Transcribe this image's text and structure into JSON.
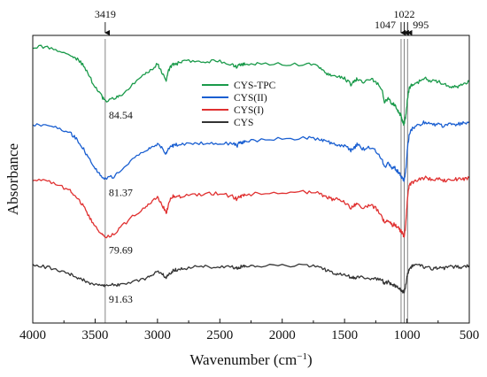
{
  "chart_data": {
    "type": "line",
    "xlabel": "Wavenumber (cm",
    "xlabel_sup": "−1",
    "xlabel_close": ")",
    "ylabel": "Absorbance",
    "xlim": [
      4000,
      500
    ],
    "x_reversed": true,
    "grid": false,
    "legend_position": "center",
    "x_ticks": [
      {
        "value": 4000,
        "label": "4000"
      },
      {
        "value": 3500,
        "label": "3500"
      },
      {
        "value": 3000,
        "label": "3000"
      },
      {
        "value": 2500,
        "label": "2500"
      },
      {
        "value": 2000,
        "label": "2000"
      },
      {
        "value": 1500,
        "label": "1500"
      },
      {
        "value": 1000,
        "label": "1000"
      },
      {
        "value": 500,
        "label": "500"
      }
    ],
    "reference_lines": [
      {
        "x": 3419,
        "label": "3419"
      },
      {
        "x": 1047,
        "label": "1047"
      },
      {
        "x": 1022,
        "label": "1022"
      },
      {
        "x": 995,
        "label": "995"
      }
    ],
    "series": [
      {
        "name": "CYS-TPC",
        "color": "#1a9a4a",
        "x": [
          4000,
          3900,
          3800,
          3700,
          3650,
          3600,
          3550,
          3500,
          3450,
          3419,
          3350,
          3300,
          3200,
          3100,
          3050,
          3000,
          2960,
          2930,
          2910,
          2880,
          2850,
          2800,
          2700,
          2600,
          2500,
          2400,
          2360,
          2340,
          2320,
          2300,
          2200,
          2000,
          1800,
          1700,
          1650,
          1600,
          1550,
          1500,
          1450,
          1420,
          1400,
          1350,
          1300,
          1250,
          1200,
          1180,
          1150,
          1120,
          1100,
          1080,
          1060,
          1047,
          1035,
          1022,
          1010,
          995,
          980,
          950,
          900,
          850,
          800,
          750,
          700,
          650,
          600,
          550,
          500
        ],
        "y": [
          0.96,
          0.96,
          0.95,
          0.93,
          0.92,
          0.9,
          0.86,
          0.82,
          0.79,
          0.77,
          0.78,
          0.79,
          0.83,
          0.87,
          0.88,
          0.9,
          0.87,
          0.84,
          0.88,
          0.9,
          0.9,
          0.91,
          0.91,
          0.91,
          0.91,
          0.9,
          0.89,
          0.9,
          0.9,
          0.9,
          0.9,
          0.9,
          0.9,
          0.89,
          0.87,
          0.86,
          0.86,
          0.85,
          0.83,
          0.84,
          0.85,
          0.84,
          0.85,
          0.84,
          0.81,
          0.77,
          0.78,
          0.76,
          0.76,
          0.74,
          0.73,
          0.72,
          0.7,
          0.69,
          0.72,
          0.78,
          0.82,
          0.83,
          0.84,
          0.85,
          0.84,
          0.84,
          0.83,
          0.82,
          0.82,
          0.83,
          0.84
        ],
        "annotation": {
          "x": 3419,
          "label": "84.54"
        }
      },
      {
        "name": "CYS(II)",
        "color": "#1a5fd1",
        "x": [
          4000,
          3900,
          3800,
          3700,
          3650,
          3600,
          3550,
          3500,
          3450,
          3419,
          3350,
          3300,
          3200,
          3100,
          3050,
          3000,
          2960,
          2930,
          2910,
          2880,
          2850,
          2800,
          2700,
          2600,
          2500,
          2400,
          2360,
          2340,
          2320,
          2300,
          2200,
          2000,
          1800,
          1700,
          1650,
          1600,
          1550,
          1500,
          1450,
          1420,
          1400,
          1350,
          1300,
          1250,
          1200,
          1180,
          1150,
          1120,
          1100,
          1080,
          1060,
          1047,
          1035,
          1022,
          1010,
          995,
          980,
          950,
          900,
          850,
          800,
          750,
          700,
          650,
          600,
          550,
          500
        ],
        "y": [
          0.69,
          0.69,
          0.68,
          0.66,
          0.64,
          0.61,
          0.57,
          0.54,
          0.51,
          0.5,
          0.51,
          0.53,
          0.57,
          0.6,
          0.61,
          0.62,
          0.605,
          0.59,
          0.605,
          0.615,
          0.62,
          0.62,
          0.625,
          0.625,
          0.625,
          0.625,
          0.615,
          0.63,
          0.625,
          0.63,
          0.635,
          0.64,
          0.645,
          0.64,
          0.63,
          0.625,
          0.62,
          0.615,
          0.6,
          0.61,
          0.62,
          0.605,
          0.61,
          0.6,
          0.57,
          0.54,
          0.555,
          0.535,
          0.54,
          0.53,
          0.52,
          0.51,
          0.5,
          0.495,
          0.53,
          0.61,
          0.66,
          0.68,
          0.69,
          0.7,
          0.69,
          0.69,
          0.685,
          0.69,
          0.69,
          0.695,
          0.7
        ],
        "annotation": {
          "x": 3419,
          "label": "81.37"
        }
      },
      {
        "name": "CYS(I)",
        "color": "#e03030",
        "x": [
          4000,
          3900,
          3800,
          3700,
          3650,
          3600,
          3550,
          3500,
          3450,
          3419,
          3350,
          3300,
          3200,
          3100,
          3050,
          3000,
          2960,
          2930,
          2910,
          2880,
          2850,
          2800,
          2700,
          2600,
          2500,
          2400,
          2360,
          2340,
          2320,
          2300,
          2200,
          2000,
          1800,
          1700,
          1650,
          1600,
          1550,
          1500,
          1450,
          1420,
          1400,
          1350,
          1300,
          1250,
          1200,
          1180,
          1150,
          1120,
          1100,
          1080,
          1060,
          1047,
          1035,
          1022,
          1010,
          995,
          980,
          950,
          900,
          850,
          800,
          750,
          700,
          650,
          600,
          550,
          500
        ],
        "y": [
          0.5,
          0.495,
          0.48,
          0.46,
          0.44,
          0.41,
          0.37,
          0.34,
          0.31,
          0.3,
          0.31,
          0.33,
          0.37,
          0.4,
          0.42,
          0.44,
          0.41,
          0.38,
          0.42,
          0.44,
          0.44,
          0.44,
          0.445,
          0.45,
          0.45,
          0.44,
          0.43,
          0.44,
          0.44,
          0.445,
          0.45,
          0.455,
          0.455,
          0.45,
          0.44,
          0.43,
          0.43,
          0.42,
          0.4,
          0.41,
          0.415,
          0.4,
          0.41,
          0.4,
          0.37,
          0.35,
          0.36,
          0.34,
          0.345,
          0.335,
          0.325,
          0.32,
          0.31,
          0.3,
          0.34,
          0.44,
          0.48,
          0.49,
          0.5,
          0.505,
          0.5,
          0.5,
          0.495,
          0.5,
          0.5,
          0.5,
          0.505
        ],
        "annotation": {
          "x": 3419,
          "label": "79.69"
        }
      },
      {
        "name": "CYS",
        "color": "#333333",
        "x": [
          4000,
          3900,
          3800,
          3700,
          3650,
          3600,
          3550,
          3500,
          3450,
          3419,
          3350,
          3300,
          3200,
          3100,
          3050,
          3000,
          2960,
          2930,
          2910,
          2880,
          2850,
          2800,
          2700,
          2600,
          2500,
          2400,
          2360,
          2340,
          2320,
          2300,
          2200,
          2000,
          1800,
          1700,
          1650,
          1600,
          1550,
          1500,
          1450,
          1420,
          1400,
          1350,
          1300,
          1250,
          1200,
          1180,
          1150,
          1120,
          1100,
          1080,
          1060,
          1047,
          1035,
          1022,
          1010,
          995,
          980,
          950,
          900,
          850,
          800,
          750,
          700,
          650,
          600,
          550,
          500
        ],
        "y": [
          0.2,
          0.195,
          0.185,
          0.17,
          0.16,
          0.15,
          0.14,
          0.135,
          0.13,
          0.13,
          0.132,
          0.135,
          0.145,
          0.155,
          0.165,
          0.18,
          0.17,
          0.16,
          0.17,
          0.18,
          0.185,
          0.19,
          0.195,
          0.195,
          0.195,
          0.195,
          0.19,
          0.195,
          0.195,
          0.198,
          0.2,
          0.2,
          0.2,
          0.195,
          0.185,
          0.175,
          0.17,
          0.165,
          0.16,
          0.158,
          0.16,
          0.158,
          0.155,
          0.155,
          0.15,
          0.135,
          0.145,
          0.13,
          0.13,
          0.125,
          0.12,
          0.115,
          0.11,
          0.105,
          0.13,
          0.17,
          0.19,
          0.2,
          0.2,
          0.195,
          0.19,
          0.19,
          0.19,
          0.195,
          0.195,
          0.195,
          0.2
        ],
        "annotation": {
          "x": 3419,
          "label": "91.63"
        }
      }
    ],
    "legend": [
      "CYS-TPC",
      "CYS(II)",
      "CYS(I)",
      "CYS"
    ]
  }
}
